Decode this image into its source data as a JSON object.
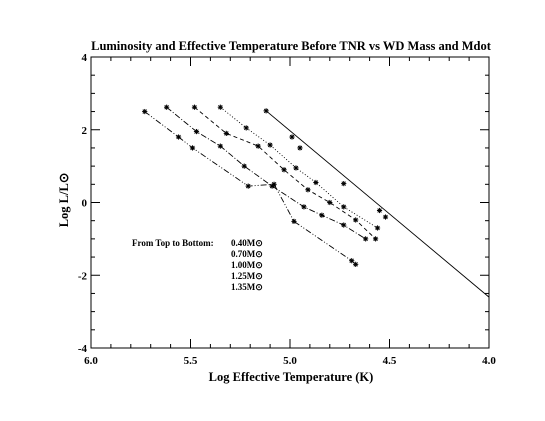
{
  "chart_data": {
    "type": "line",
    "title": "Luminosity and Effective Temperature Before TNR vs WD Mass and Mdot",
    "xlabel": "Log Effective Temperature (K)",
    "ylabel": "Log  L/L⊙",
    "xlim": [
      6.0,
      4.0
    ],
    "ylim": [
      -4,
      4
    ],
    "x_reversed": true,
    "xticks": [
      6.0,
      5.5,
      5.0,
      4.5,
      4.0
    ],
    "xtick_labels": [
      "6.0",
      "5.5",
      "5.0",
      "4.5",
      "4.0"
    ],
    "yticks": [
      -4,
      -2,
      0,
      2,
      4
    ],
    "ytick_labels": [
      "-4",
      "-2",
      "0",
      "2",
      "4"
    ],
    "grid": false,
    "legend_title": "From Top to Bottom:",
    "legend_position": "lower-left",
    "series": [
      {
        "name": "0.40M⊙",
        "line_style": "solid",
        "markers": true,
        "line_x": [
          5.12,
          4.0
        ],
        "line_y": [
          2.52,
          -2.6
        ],
        "x": [
          5.12,
          4.99,
          4.95,
          4.73,
          4.55,
          4.52
        ],
        "y": [
          2.52,
          1.8,
          1.5,
          0.52,
          -0.22,
          -0.4
        ]
      },
      {
        "name": "0.70M⊙",
        "line_style": "dotted",
        "markers": true,
        "x": [
          5.35,
          5.22,
          5.1,
          4.97,
          4.87,
          4.73,
          4.56
        ],
        "y": [
          2.62,
          2.05,
          1.58,
          0.95,
          0.55,
          -0.12,
          -0.7
        ]
      },
      {
        "name": "1.00M⊙",
        "line_style": "dashed",
        "markers": true,
        "x": [
          5.48,
          5.32,
          5.16,
          5.03,
          4.91,
          4.8,
          4.67,
          4.57
        ],
        "y": [
          2.62,
          1.9,
          1.55,
          0.9,
          0.35,
          0.0,
          -0.48,
          -1.0
        ]
      },
      {
        "name": "1.25M⊙",
        "line_style": "dash-dot",
        "markers": true,
        "x": [
          5.62,
          5.47,
          5.35,
          5.23,
          5.09,
          4.93,
          4.84,
          4.73,
          4.62
        ],
        "y": [
          2.62,
          1.95,
          1.55,
          1.0,
          0.45,
          -0.12,
          -0.35,
          -0.62,
          -1.0
        ]
      },
      {
        "name": "1.35M⊙",
        "line_style": "dash-dot-dot",
        "markers": true,
        "x": [
          5.73,
          5.56,
          5.49,
          5.21,
          5.08,
          4.98,
          4.69,
          4.67
        ],
        "y": [
          2.5,
          1.8,
          1.5,
          0.45,
          0.5,
          -0.52,
          -1.6,
          -1.7
        ]
      }
    ]
  }
}
